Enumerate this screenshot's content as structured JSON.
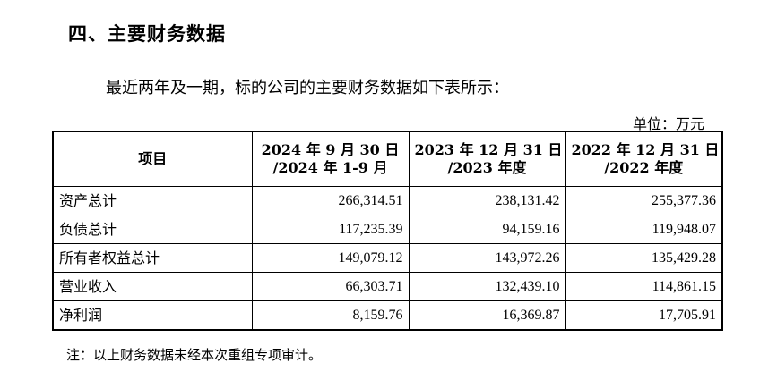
{
  "section": {
    "title": "四、主要财务数据"
  },
  "intro": "最近两年及一期，标的公司的主要财务数据如下表所示：",
  "unit": "单位：万元",
  "table": {
    "headers": [
      {
        "line1": "项目",
        "line2": ""
      },
      {
        "line1": "2024 年 9 月 30 日",
        "line2": "/2024 年 1-9 月"
      },
      {
        "line1": "2023 年 12 月 31 日",
        "line2": "/2023 年度"
      },
      {
        "line1": "2022 年 12 月 31 日",
        "line2": "/2022 年度"
      }
    ],
    "rows": [
      {
        "label": "资产总计",
        "values": [
          "266,314.51",
          "238,131.42",
          "255,377.36"
        ]
      },
      {
        "label": "负债总计",
        "values": [
          "117,235.39",
          "94,159.16",
          "119,948.07"
        ]
      },
      {
        "label": "所有者权益总计",
        "values": [
          "149,079.12",
          "143,972.26",
          "135,429.28"
        ]
      },
      {
        "label": "营业收入",
        "values": [
          "66,303.71",
          "132,439.10",
          "114,861.15"
        ]
      },
      {
        "label": "净利润",
        "values": [
          "8,159.76",
          "16,369.87",
          "17,705.91"
        ]
      }
    ]
  },
  "note": "注：以上财务数据未经本次重组专项审计。"
}
